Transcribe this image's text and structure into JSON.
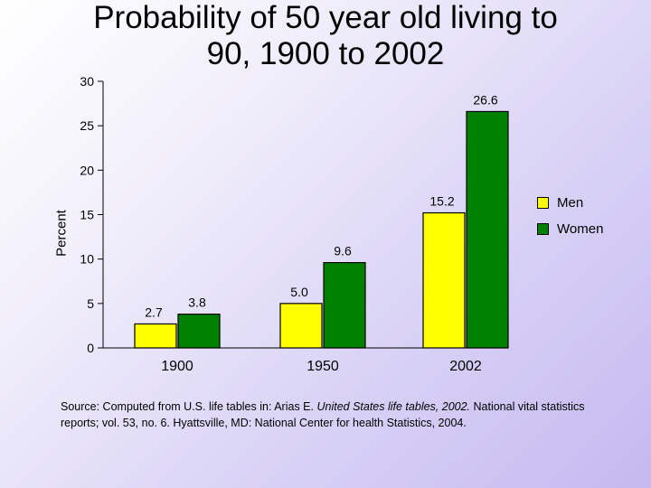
{
  "chart_data": {
    "type": "bar",
    "title": "Probability of 50 year old living to 90, 1900 to 2002",
    "title_lines": [
      "Probability of 50 year old living to",
      "90, 1900 to 2002"
    ],
    "ylabel": "Percent",
    "xlabel": "",
    "ylim": [
      0,
      30
    ],
    "yticks": [
      0,
      5,
      10,
      15,
      20,
      25,
      30
    ],
    "categories": [
      "1900",
      "1950",
      "2002"
    ],
    "series": [
      {
        "name": "Men",
        "color": "#ffff00",
        "values": [
          2.7,
          5.0,
          15.2
        ],
        "labels": [
          "2.7",
          "5.0",
          "15.2"
        ]
      },
      {
        "name": "Women",
        "color": "#008000",
        "values": [
          3.8,
          9.6,
          26.6
        ],
        "labels": [
          "3.8",
          "9.6",
          "26.6"
        ]
      }
    ],
    "legend_position": "right"
  },
  "source": {
    "prefix": "Source:  Computed from U.S. life tables in:  Arias E. ",
    "italic": "United States life tables, 2002.",
    "suffix": "  National vital statistics reports; vol. 53, no. 6.  Hyattsville, MD: National Center for health Statistics, 2004."
  }
}
